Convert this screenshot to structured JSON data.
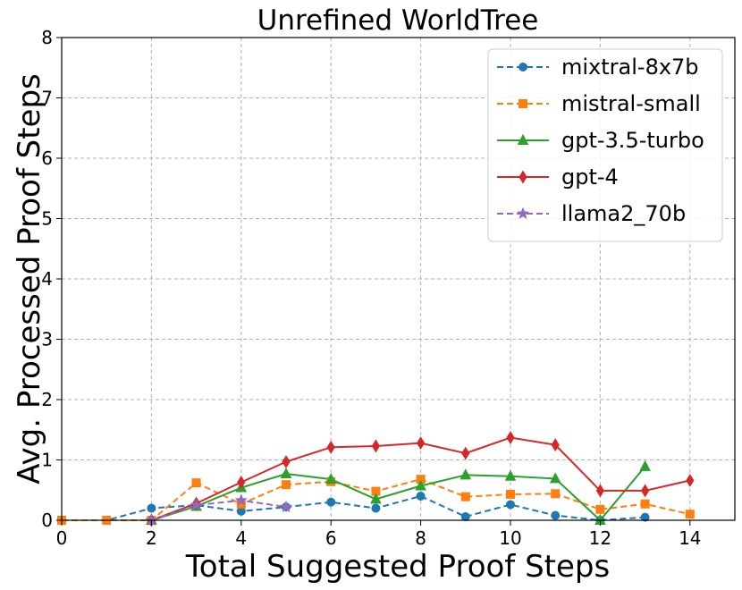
{
  "chart_data": {
    "type": "line",
    "title": "Unrefined WorldTree",
    "xlabel": "Total Suggested Proof Steps",
    "ylabel": "Avg. Processed Proof Steps",
    "xlim": [
      0,
      15
    ],
    "ylim": [
      0,
      8
    ],
    "xticks": [
      0,
      2,
      4,
      6,
      8,
      10,
      12,
      14
    ],
    "yticks": [
      0,
      1,
      2,
      3,
      4,
      5,
      6,
      7,
      8
    ],
    "grid": true,
    "legend_position": "top-right",
    "series": [
      {
        "name": "mixtral-8x7b",
        "color": "#1f77b4",
        "linestyle": "dashed",
        "marker": "circle",
        "x": [
          0,
          1,
          2,
          3,
          4,
          5,
          6,
          7,
          8,
          9,
          10,
          11,
          12,
          13
        ],
        "y": [
          0,
          0,
          0.2,
          0.25,
          0.15,
          0.22,
          0.3,
          0.2,
          0.4,
          0.06,
          0.26,
          0.08,
          0.0,
          0.05
        ]
      },
      {
        "name": "mistral-small",
        "color": "#ff7f0e",
        "linestyle": "dashed",
        "marker": "square",
        "x": [
          0,
          1,
          2,
          3,
          4,
          5,
          6,
          7,
          8,
          9,
          10,
          11,
          12,
          13,
          14
        ],
        "y": [
          0,
          0,
          0,
          0.62,
          0.27,
          0.59,
          0.64,
          0.48,
          0.68,
          0.39,
          0.43,
          0.44,
          0.18,
          0.27,
          0.1
        ]
      },
      {
        "name": "gpt-3.5-turbo",
        "color": "#2ca02c",
        "linestyle": "solid",
        "marker": "triangle",
        "x": [
          2,
          3,
          4,
          5,
          6,
          7,
          8,
          9,
          10,
          11,
          12,
          13
        ],
        "y": [
          0,
          0.23,
          0.54,
          0.77,
          0.68,
          0.35,
          0.57,
          0.75,
          0.73,
          0.69,
          0.0,
          0.89
        ]
      },
      {
        "name": "gpt-4",
        "color": "#d62728",
        "linestyle": "solid",
        "marker": "diamond",
        "x": [
          2,
          3,
          4,
          5,
          6,
          7,
          8,
          9,
          10,
          11,
          12,
          13,
          14
        ],
        "y": [
          0,
          0.28,
          0.63,
          0.97,
          1.21,
          1.23,
          1.28,
          1.11,
          1.37,
          1.25,
          0.49,
          0.49,
          0.66
        ]
      },
      {
        "name": "llama2_70b",
        "color": "#9467bd",
        "linestyle": "dashed",
        "marker": "star",
        "x": [
          2,
          3,
          4,
          5
        ],
        "y": [
          0,
          0.25,
          0.33,
          0.22
        ]
      }
    ]
  }
}
